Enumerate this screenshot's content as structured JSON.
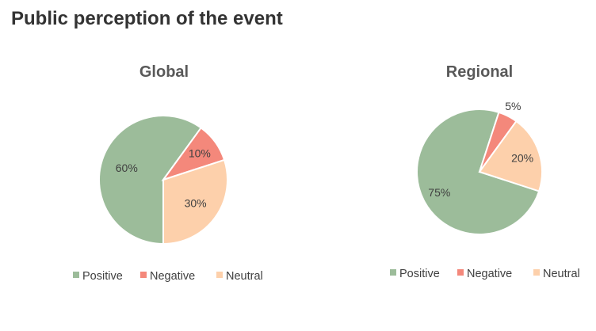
{
  "page": {
    "title": "Public perception of the event"
  },
  "colors": {
    "Positive": "#9cbc9a",
    "Negative": "#f4887b",
    "Neutral": "#fdd0ab"
  },
  "chart_data": [
    {
      "type": "pie",
      "title": "Global",
      "categories": [
        "Positive",
        "Negative",
        "Neutral"
      ],
      "values": [
        60,
        10,
        30
      ],
      "labels": [
        "60%",
        "10%",
        "30%"
      ],
      "legend": [
        "Positive",
        "Negative",
        "Neutral"
      ],
      "legend_position": "bottom"
    },
    {
      "type": "pie",
      "title": "Regional",
      "categories": [
        "Positive",
        "Negative",
        "Neutral"
      ],
      "values": [
        75,
        5,
        20
      ],
      "labels": [
        "75%",
        "5%",
        "20%"
      ],
      "legend": [
        "Positive",
        "Negative",
        "Neutral"
      ],
      "legend_position": "bottom"
    }
  ]
}
